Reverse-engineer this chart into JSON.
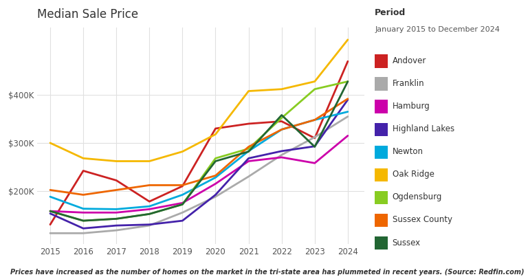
{
  "title": "Median Sale Price",
  "period_label": "Period",
  "period_dates": "January 2015 to December 2024",
  "footer": "Prices have increased as the number of homes on the market in the tri-state area has plummeted in recent years. (Source: Redfin.com)",
  "years": [
    2015,
    2016,
    2017,
    2018,
    2019,
    2020,
    2021,
    2022,
    2023,
    2024
  ],
  "series": {
    "Andover": {
      "color": "#cc2222",
      "values": [
        130000,
        242000,
        222000,
        178000,
        210000,
        330000,
        340000,
        345000,
        310000,
        470000
      ]
    },
    "Franklin": {
      "color": "#aaaaaa",
      "values": [
        112000,
        112000,
        118000,
        128000,
        155000,
        188000,
        230000,
        275000,
        312000,
        355000
      ]
    },
    "Hamburg": {
      "color": "#cc00aa",
      "values": [
        158000,
        155000,
        155000,
        162000,
        175000,
        215000,
        262000,
        270000,
        258000,
        315000
      ]
    },
    "Highland Lakes": {
      "color": "#4422aa",
      "values": [
        153000,
        122000,
        128000,
        130000,
        138000,
        192000,
        268000,
        283000,
        293000,
        390000
      ]
    },
    "Newton": {
      "color": "#00aadd",
      "values": [
        188000,
        163000,
        162000,
        168000,
        192000,
        228000,
        283000,
        328000,
        348000,
        365000
      ]
    },
    "Oak Ridge": {
      "color": "#f5b800",
      "values": [
        300000,
        268000,
        262000,
        262000,
        282000,
        318000,
        408000,
        412000,
        428000,
        515000
      ]
    },
    "Ogdensburg": {
      "color": "#88cc22",
      "values": [
        158000,
        138000,
        142000,
        152000,
        172000,
        268000,
        288000,
        352000,
        412000,
        428000
      ]
    },
    "Sussex County": {
      "color": "#ee6600",
      "values": [
        202000,
        192000,
        202000,
        212000,
        212000,
        232000,
        292000,
        328000,
        348000,
        392000
      ]
    },
    "Sussex": {
      "color": "#226633",
      "values": [
        158000,
        138000,
        142000,
        152000,
        172000,
        262000,
        282000,
        358000,
        292000,
        428000
      ]
    }
  },
  "ylim": [
    90000,
    540000
  ],
  "yticks": [
    200000,
    300000,
    400000
  ],
  "ytick_labels": [
    "$200K",
    "$300K",
    "$400K"
  ],
  "background_color": "#ffffff",
  "grid_color": "#e0e0e0"
}
